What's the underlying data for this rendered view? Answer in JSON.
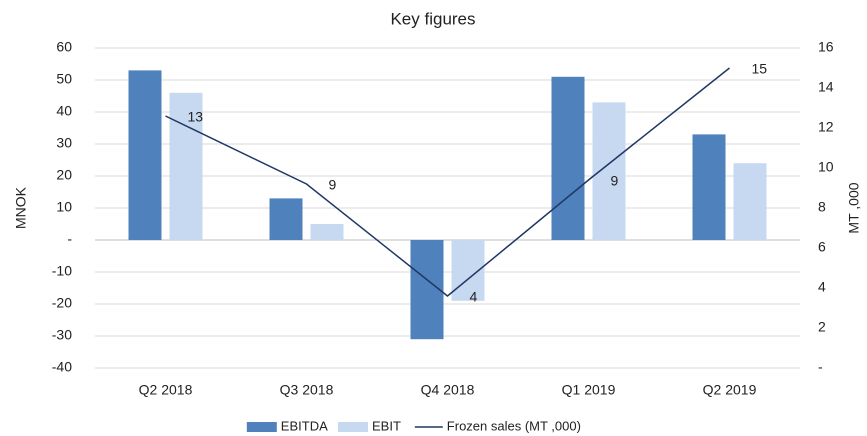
{
  "chart_data": {
    "type": "bar",
    "title": "Key figures",
    "y_label": "MNOK",
    "y2_label": "MT ,000",
    "categories": [
      "Q2 2018",
      "Q3 2018",
      "Q4 2018",
      "Q1 2019",
      "Q2 2019"
    ],
    "series": [
      {
        "name": "EBITDA",
        "color": "#4f81bd",
        "type": "bar",
        "values": [
          53,
          13,
          -31,
          51,
          33
        ]
      },
      {
        "name": "EBIT",
        "color": "#c6d9f1",
        "type": "bar",
        "values": [
          46,
          5,
          -19,
          43,
          24
        ]
      },
      {
        "name": "Frozen sales (MT ,000)",
        "color": "#1f3864",
        "type": "line",
        "axis": "y2",
        "values": [
          12.6,
          9.2,
          3.6,
          9.4,
          15.0
        ],
        "value_labels": [
          "13",
          "9",
          "4",
          "9",
          "15"
        ]
      }
    ],
    "ylim": [
      -40,
      60
    ],
    "yticks": [
      -40,
      -30,
      -20,
      -10,
      {
        "value": 0,
        "label": "-"
      },
      10,
      20,
      30,
      40,
      50,
      60
    ],
    "y2lim": [
      0,
      16
    ],
    "y2ticks": [
      {
        "value": 0,
        "label": "-"
      },
      2,
      4,
      6,
      8,
      10,
      12,
      14,
      16
    ],
    "grid": true,
    "legend": "bottom"
  }
}
